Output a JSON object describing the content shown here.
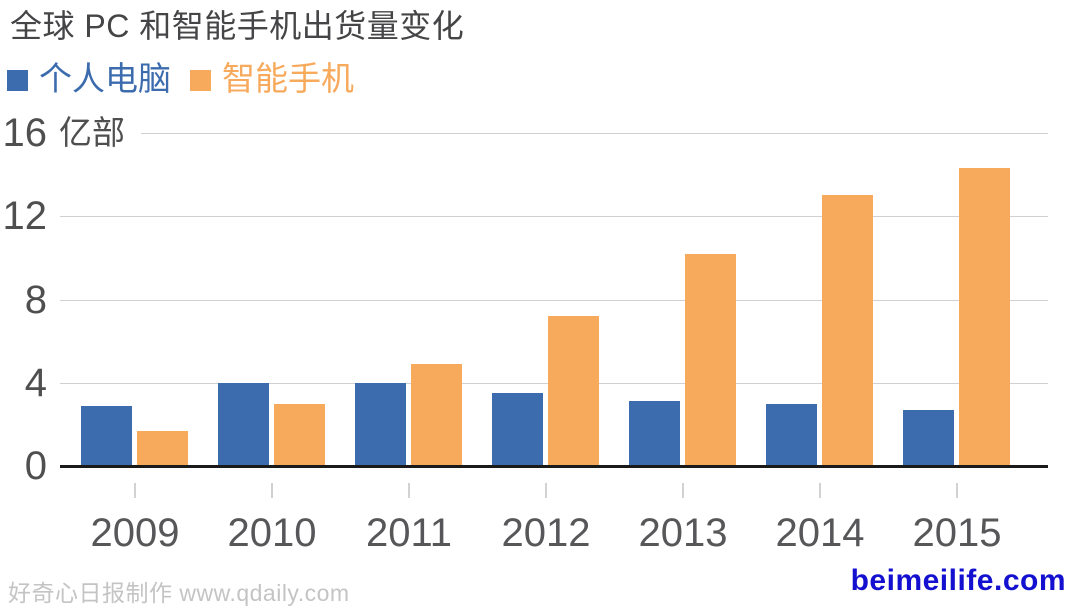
{
  "header": {
    "title": "全球 PC 和智能手机出货量变化"
  },
  "legend": {
    "items": [
      {
        "label": "个人电脑",
        "color": "#3c6cae"
      },
      {
        "label": "智能手机",
        "color": "#f7a95c"
      }
    ]
  },
  "chart_data": {
    "type": "bar",
    "title": "全球 PC 和智能手机出货量变化",
    "categories": [
      "2009",
      "2010",
      "2011",
      "2012",
      "2013",
      "2014",
      "2015"
    ],
    "series": [
      {
        "name": "个人电脑",
        "color": "#3c6cae",
        "values": [
          2.9,
          4.0,
          4.0,
          3.5,
          3.1,
          3.0,
          2.7
        ]
      },
      {
        "name": "智能手机",
        "color": "#f7a95c",
        "values": [
          1.7,
          3.0,
          4.9,
          7.2,
          10.2,
          13.0,
          14.3
        ]
      }
    ],
    "unit_label": "亿部",
    "xlabel": "",
    "ylabel": "亿部",
    "y_ticks": [
      0,
      4,
      8,
      12,
      16
    ],
    "ylim": [
      0,
      16
    ],
    "grid": true,
    "legend_position": "top-left",
    "colors": {
      "grid": "#d0d0d0",
      "baseline": "#1a1a1a",
      "axis_text": "#4f4f50",
      "title_text": "#454547"
    }
  },
  "footer": {
    "credit": "好奇心日报制作 www.qdaily.com",
    "watermark": "beimeilife.com",
    "watermark_color": "#1410d0"
  }
}
